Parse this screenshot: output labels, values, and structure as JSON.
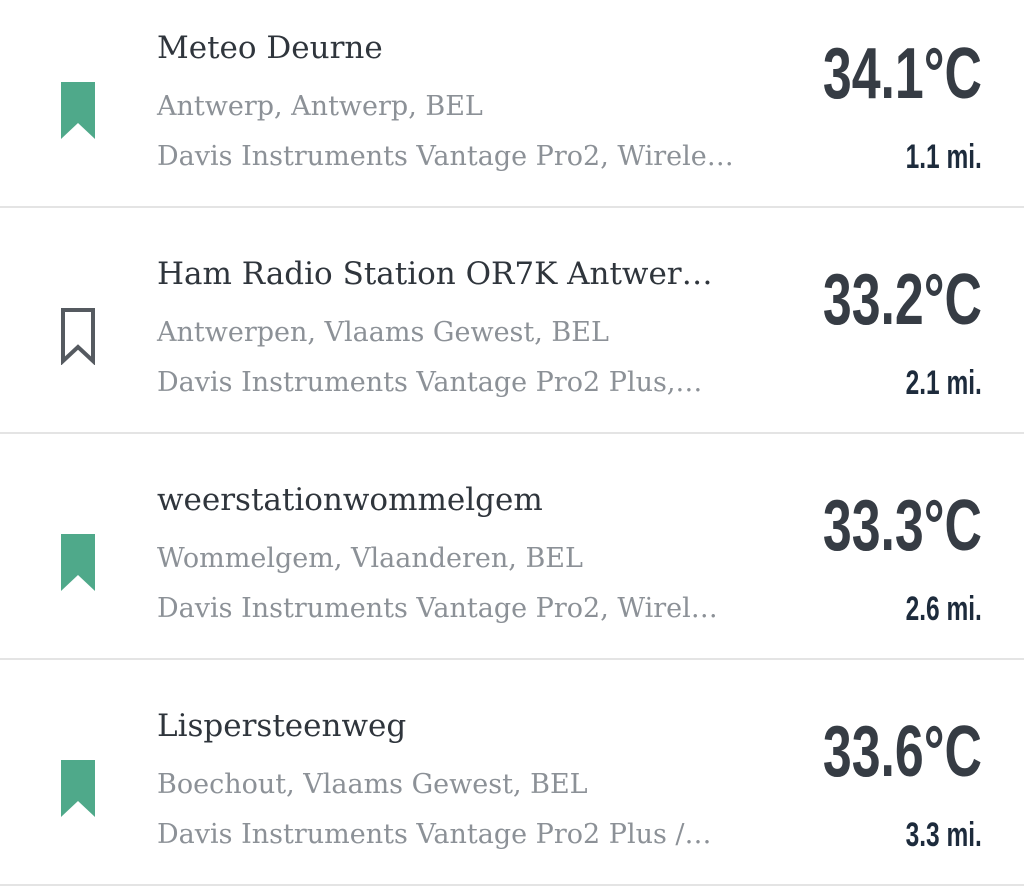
{
  "colors": {
    "bookmark_active": "#4fa98a",
    "bookmark_inactive": "#555a60",
    "title": "#2f353c",
    "subtitle": "#8c9197",
    "temperature": "#363c44",
    "distance": "#1d2b3c"
  },
  "stations": [
    {
      "name": "Meteo Deurne",
      "location": "Antwerp, Antwerp, BEL",
      "hardware": "Davis Instruments Vantage Pro2, Wirele…",
      "temperature": "34.1°C",
      "distance": "1.1 mi.",
      "bookmarked": true,
      "icon": "bookmark-filled-icon"
    },
    {
      "name": "Ham Radio Station OR7K Antwer…",
      "location": "Antwerpen, Vlaams Gewest, BEL",
      "hardware": "Davis Instruments Vantage Pro2 Plus,…",
      "temperature": "33.2°C",
      "distance": "2.1 mi.",
      "bookmarked": false,
      "icon": "bookmark-outline-icon"
    },
    {
      "name": "weerstationwommelgem",
      "location": "Wommelgem, Vlaanderen, BEL",
      "hardware": "Davis Instruments Vantage Pro2, Wirel…",
      "temperature": "33.3°C",
      "distance": "2.6 mi.",
      "bookmarked": true,
      "icon": "bookmark-filled-icon"
    },
    {
      "name": "Lispersteenweg",
      "location": "Boechout, Vlaams Gewest, BEL",
      "hardware": "Davis Instruments Vantage Pro2 Plus /…",
      "temperature": "33.6°C",
      "distance": "3.3 mi.",
      "bookmarked": true,
      "icon": "bookmark-filled-icon"
    }
  ]
}
